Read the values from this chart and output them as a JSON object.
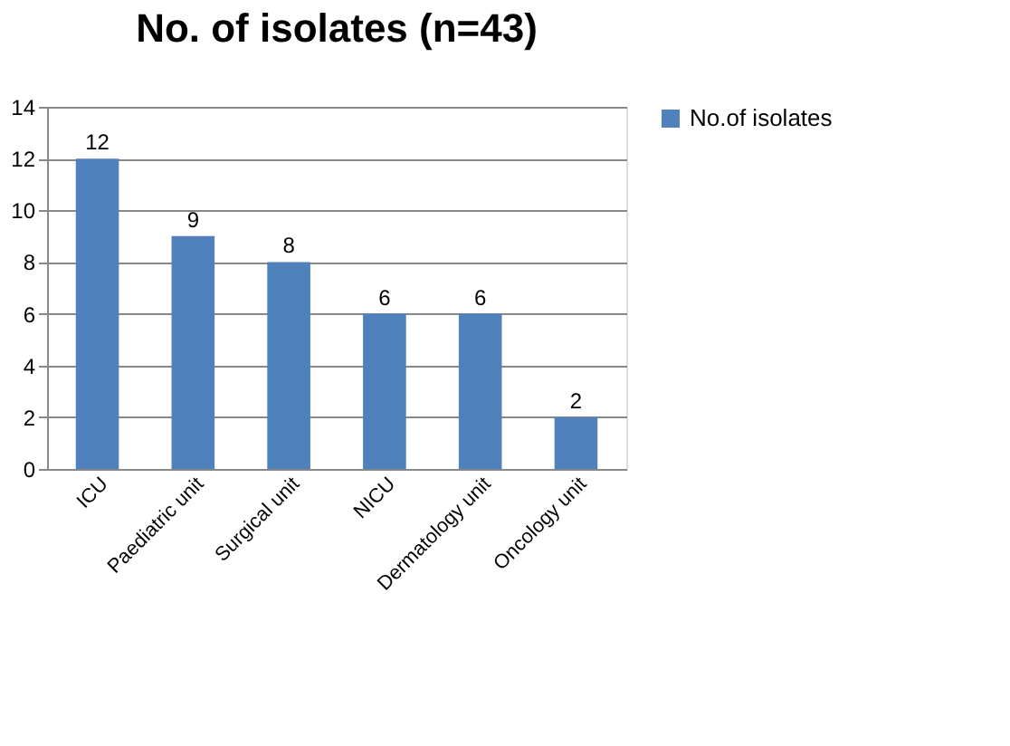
{
  "chart_data": {
    "type": "bar",
    "title": "No. of isolates (n=43)",
    "categories": [
      "ICU",
      "Paediatric unit",
      "Surgical unit",
      "NICU",
      "Dermatology unit",
      "Oncology unit"
    ],
    "series": [
      {
        "name": "No.of isolates",
        "color": "#4f81bd",
        "values": [
          12,
          9,
          8,
          6,
          6,
          2
        ]
      }
    ],
    "ylim": [
      0,
      14
    ],
    "yticks": [
      0,
      2,
      4,
      6,
      8,
      10,
      12,
      14
    ],
    "grid": "y",
    "legend": "right",
    "data_labels": true
  }
}
